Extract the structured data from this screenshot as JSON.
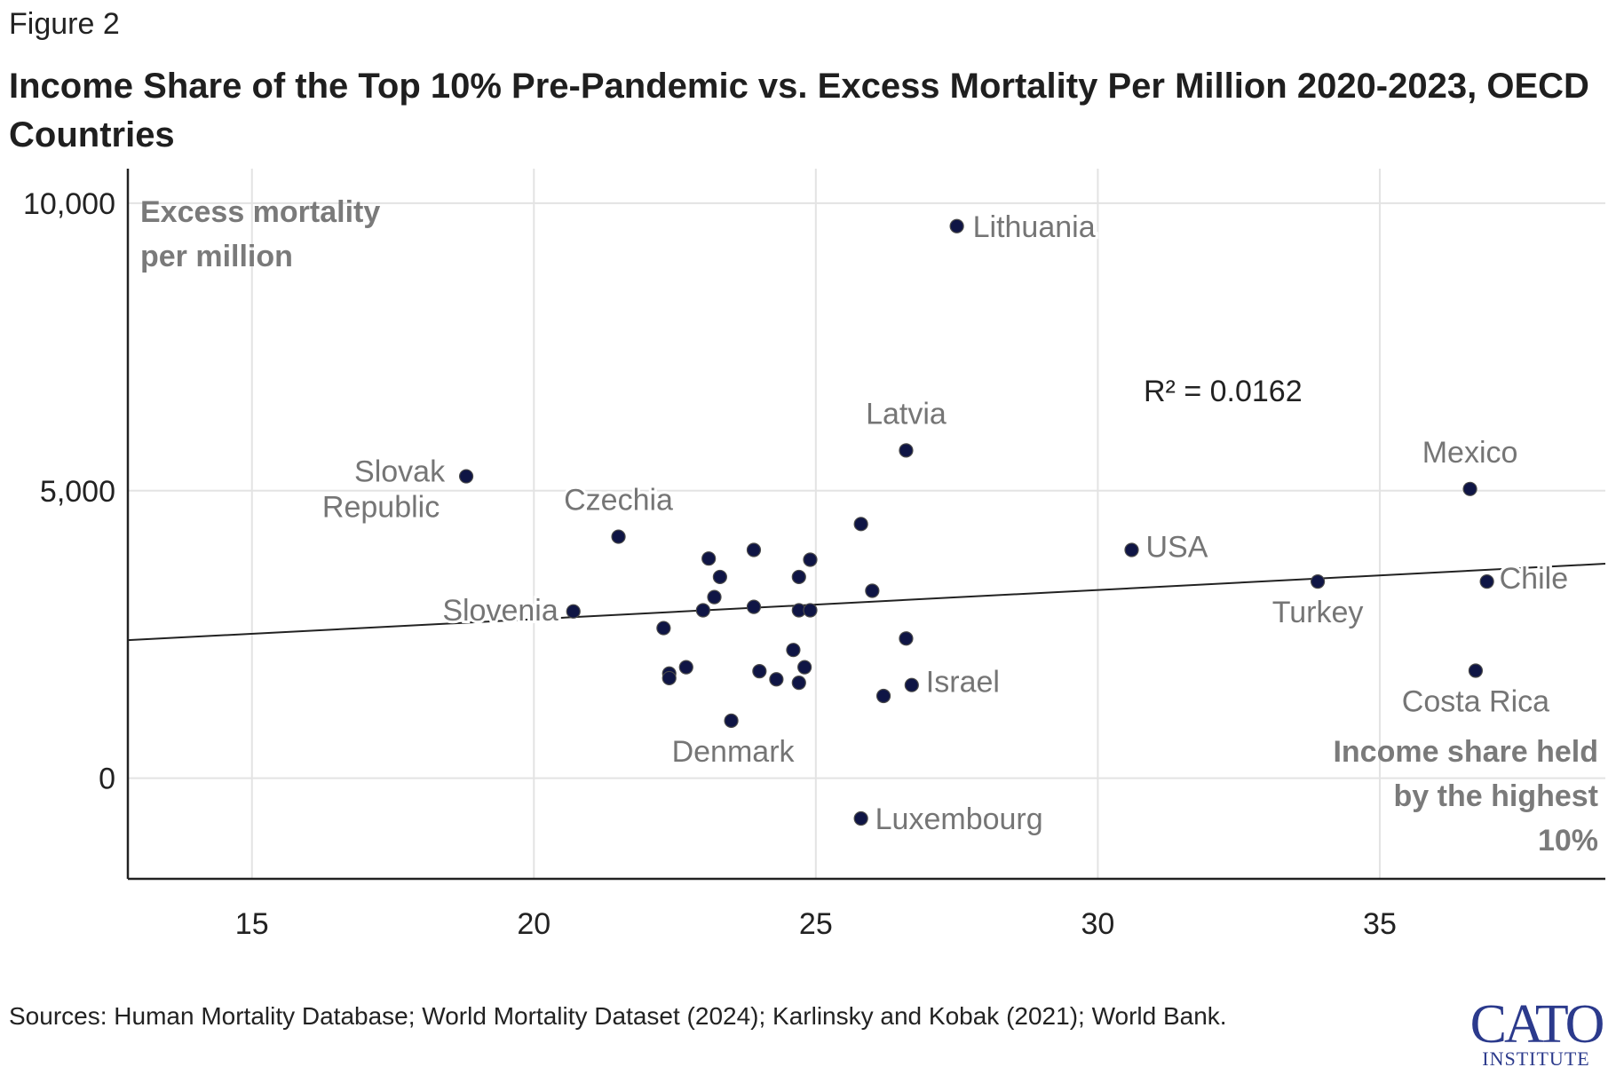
{
  "figure_label": "Figure 2",
  "title": "Income Share of the Top 10% Pre-Pandemic vs. Excess Mortality Per Million 2020-2023, OECD Countries",
  "sources": "Sources: Human Mortality Database; World Mortality Dataset (2024); Karlinsky and Kobak (2021); World Bank.",
  "logo": {
    "line1": "CATO",
    "line2": "INSTITUTE",
    "color": "#2b3a8c"
  },
  "colors": {
    "point": "#0f1545",
    "grid": "#e3e3e3",
    "axis": "#222222",
    "label": "#757575",
    "trend": "#222222"
  },
  "chart_data": {
    "type": "scatter",
    "title": "Income Share of the Top 10% Pre-Pandemic vs. Excess Mortality Per Million 2020-2023, OECD Countries",
    "xlabel": "Income share held by the highest 10%",
    "ylabel": "Excess mortality per million",
    "ylabel_lines": [
      "Excess mortality",
      "per million"
    ],
    "xlabel_lines": [
      "Income share held",
      "by the highest",
      "10%"
    ],
    "xlim": [
      12.8,
      39.0
    ],
    "ylim": [
      -1750,
      10600
    ],
    "x_ticks": [
      15,
      20,
      25,
      30,
      35
    ],
    "y_ticks": [
      0,
      5000,
      10000
    ],
    "y_tick_labels": [
      "0",
      "5,000",
      "10,000"
    ],
    "grid": true,
    "annotation": "R² = 0.0162",
    "trend_line": {
      "x": [
        12.8,
        39.0
      ],
      "y": [
        2400,
        3730
      ]
    },
    "points": [
      {
        "x": 27.5,
        "y": 9600,
        "label": "Lithuania"
      },
      {
        "x": 26.6,
        "y": 5700,
        "label": "Latvia"
      },
      {
        "x": 18.8,
        "y": 5250,
        "label": "Slovak Republic"
      },
      {
        "x": 21.5,
        "y": 4200,
        "label": "Czechia"
      },
      {
        "x": 20.7,
        "y": 2900,
        "label": "Slovenia"
      },
      {
        "x": 23.5,
        "y": 1000,
        "label": "Denmark"
      },
      {
        "x": 26.7,
        "y": 1620,
        "label": "Israel"
      },
      {
        "x": 25.8,
        "y": -700,
        "label": "Luxembourg"
      },
      {
        "x": 30.6,
        "y": 3970,
        "label": "USA"
      },
      {
        "x": 33.9,
        "y": 3420,
        "label": "Turkey"
      },
      {
        "x": 36.6,
        "y": 5030,
        "label": "Mexico"
      },
      {
        "x": 36.9,
        "y": 3420,
        "label": "Chile"
      },
      {
        "x": 36.7,
        "y": 1870,
        "label": "Costa Rica"
      },
      {
        "x": 25.8,
        "y": 4420,
        "label": ""
      },
      {
        "x": 23.9,
        "y": 3970,
        "label": ""
      },
      {
        "x": 23.1,
        "y": 3820,
        "label": ""
      },
      {
        "x": 24.9,
        "y": 3800,
        "label": ""
      },
      {
        "x": 23.3,
        "y": 3500,
        "label": ""
      },
      {
        "x": 24.7,
        "y": 3500,
        "label": ""
      },
      {
        "x": 26.0,
        "y": 3260,
        "label": ""
      },
      {
        "x": 23.2,
        "y": 3150,
        "label": ""
      },
      {
        "x": 23.0,
        "y": 2920,
        "label": ""
      },
      {
        "x": 23.9,
        "y": 2980,
        "label": ""
      },
      {
        "x": 24.7,
        "y": 2920,
        "label": ""
      },
      {
        "x": 24.9,
        "y": 2920,
        "label": ""
      },
      {
        "x": 22.3,
        "y": 2610,
        "label": ""
      },
      {
        "x": 26.6,
        "y": 2430,
        "label": ""
      },
      {
        "x": 24.6,
        "y": 2230,
        "label": ""
      },
      {
        "x": 22.7,
        "y": 1930,
        "label": ""
      },
      {
        "x": 24.8,
        "y": 1930,
        "label": ""
      },
      {
        "x": 22.4,
        "y": 1820,
        "label": ""
      },
      {
        "x": 24.0,
        "y": 1860,
        "label": ""
      },
      {
        "x": 22.4,
        "y": 1740,
        "label": ""
      },
      {
        "x": 24.3,
        "y": 1720,
        "label": ""
      },
      {
        "x": 24.7,
        "y": 1660,
        "label": ""
      },
      {
        "x": 26.2,
        "y": 1430,
        "label": ""
      }
    ]
  }
}
